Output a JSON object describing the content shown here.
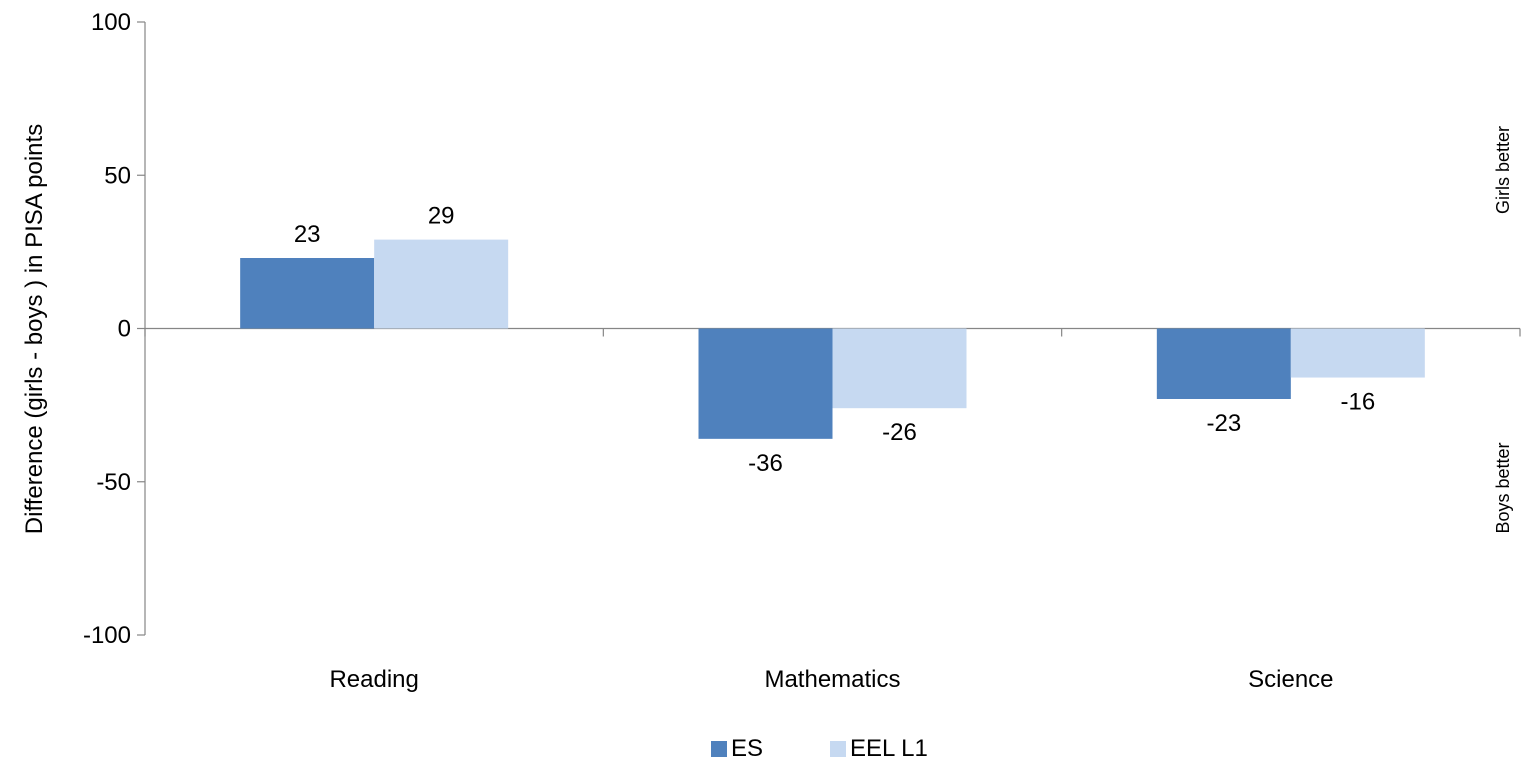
{
  "chart_data": {
    "type": "bar",
    "categories": [
      "Reading",
      "Mathematics",
      "Science"
    ],
    "series": [
      {
        "name": "ES",
        "values": [
          23,
          -36,
          -23
        ],
        "color": "#4f81bd"
      },
      {
        "name": "EEL L1",
        "values": [
          29,
          -26,
          -16
        ],
        "color": "#c6d9f1"
      }
    ],
    "ylabel": "Difference (girls - boys ) in PISA points",
    "ylim": [
      -100,
      100
    ],
    "yticks": [
      -100,
      -50,
      0,
      50,
      100
    ],
    "annotations": {
      "upper": "Girls better",
      "lower": "Boys better"
    },
    "legend_position": "bottom",
    "grid": false
  }
}
